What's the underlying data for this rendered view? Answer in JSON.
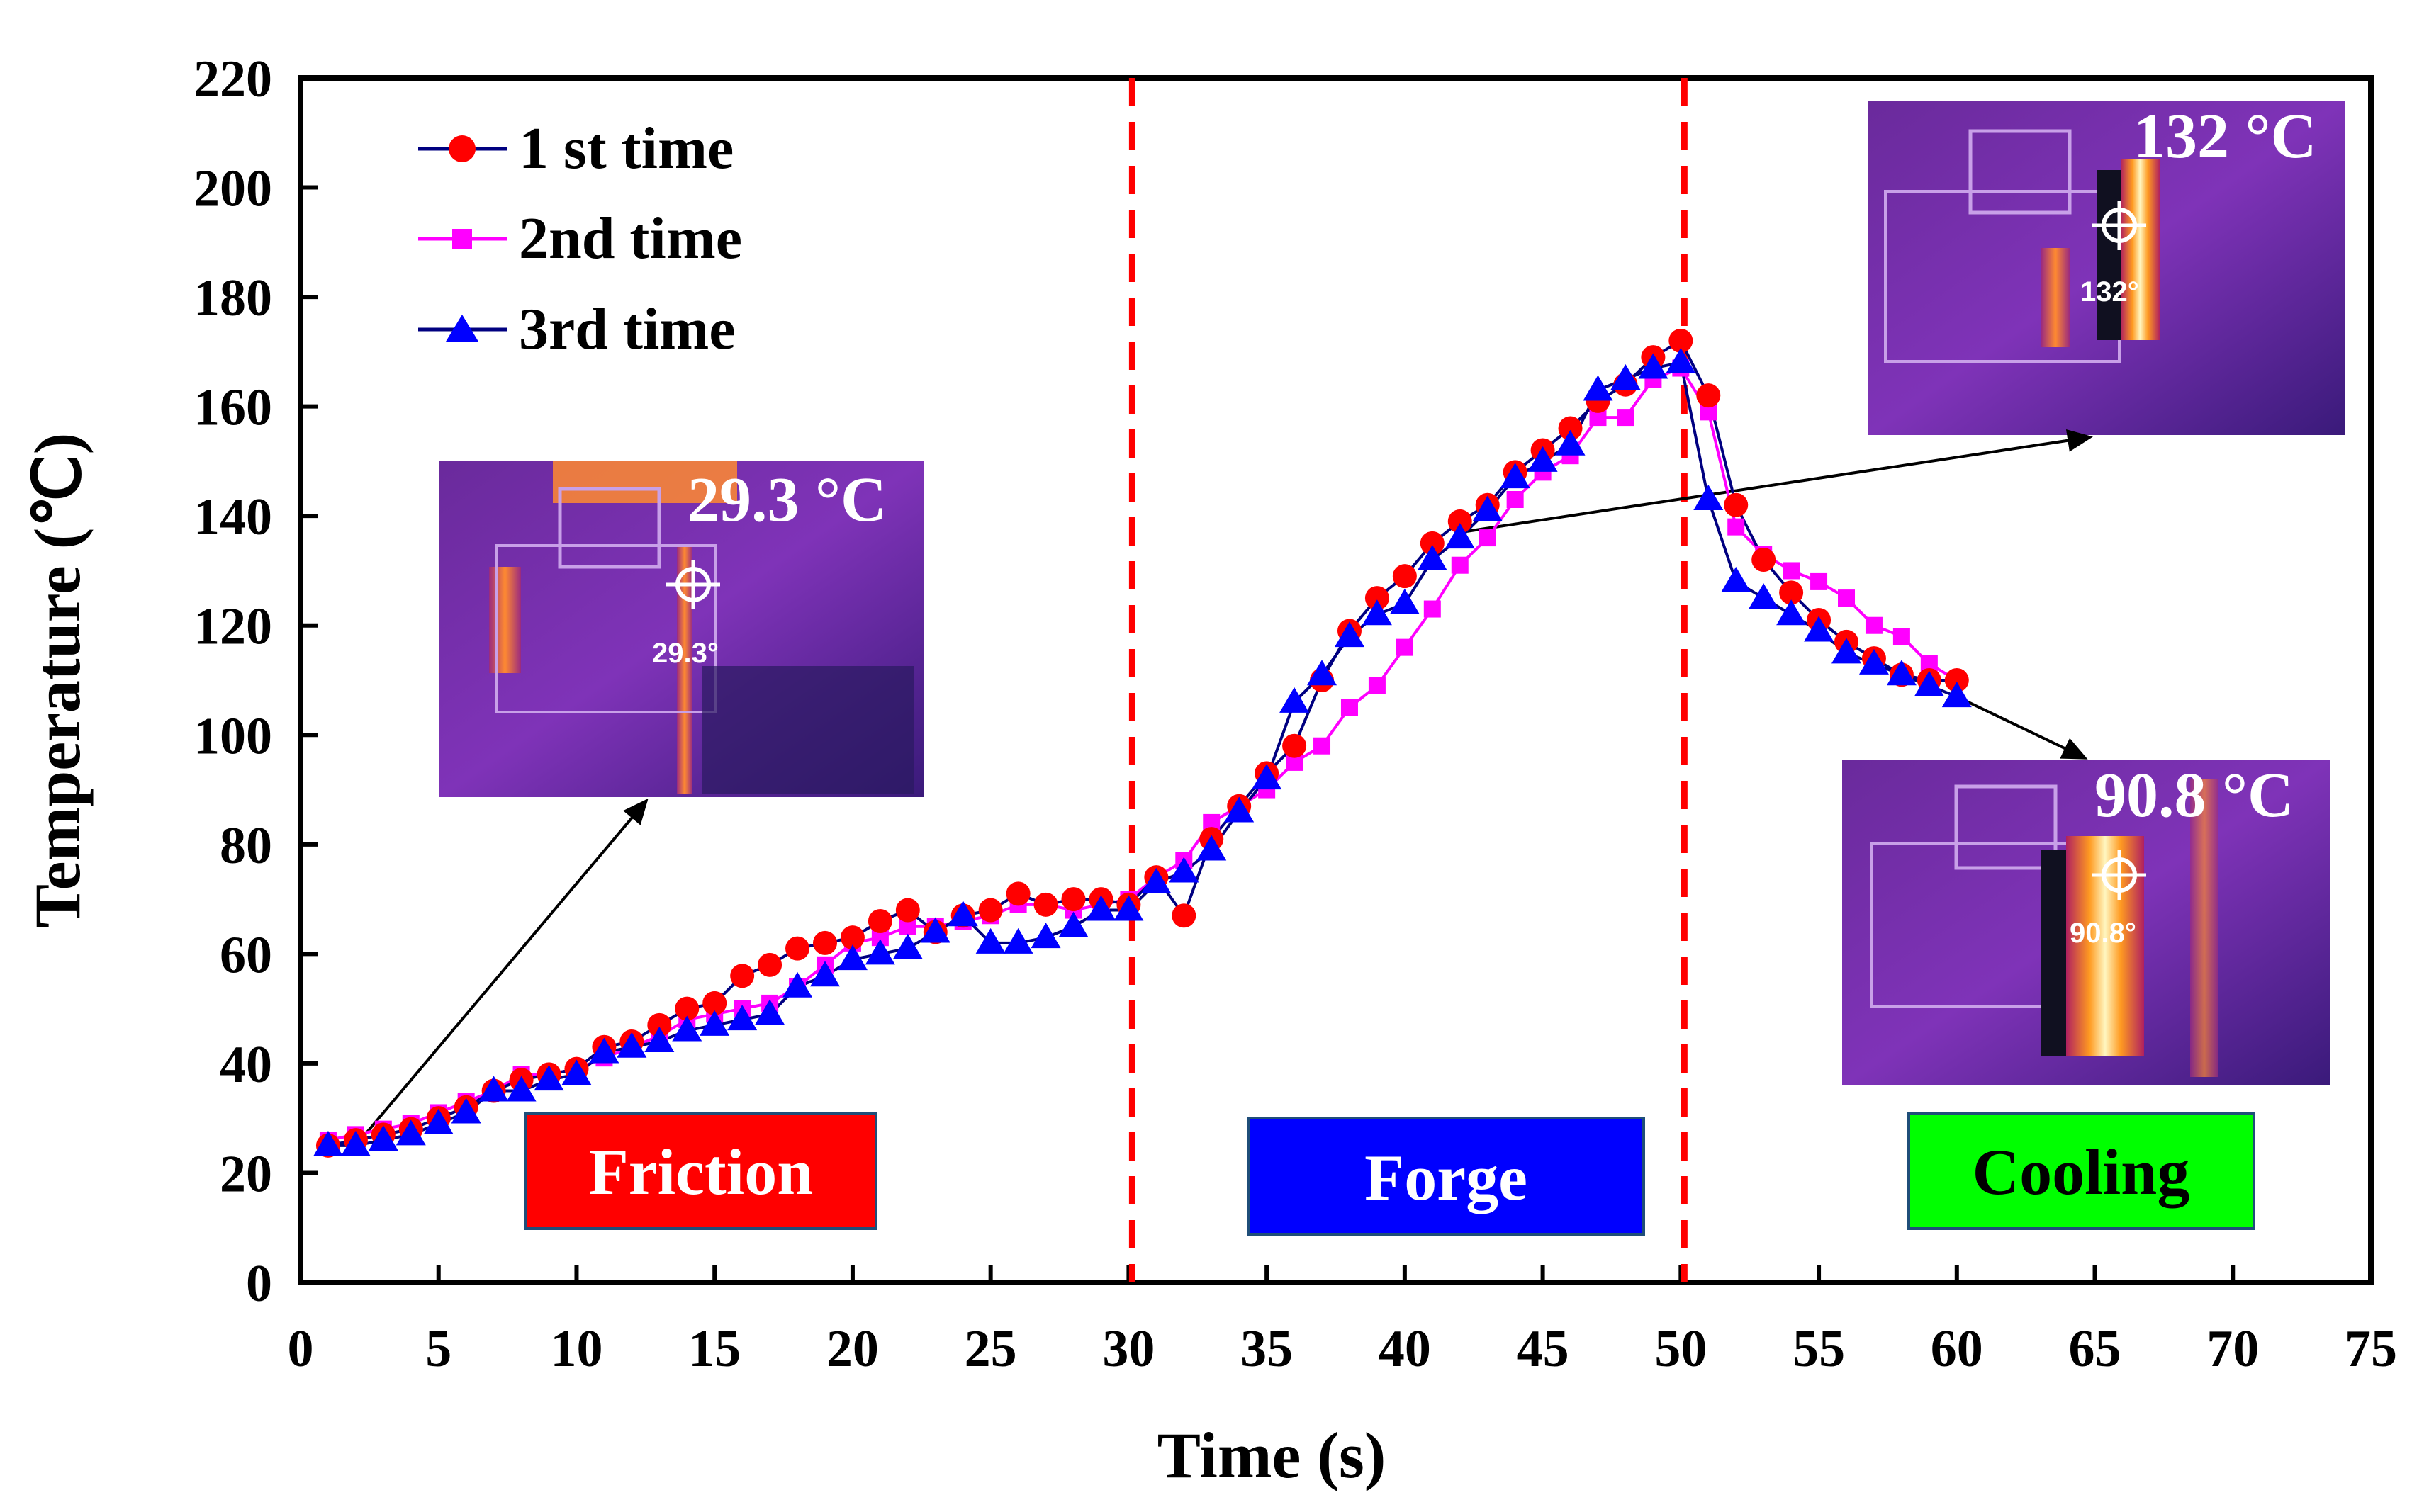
{
  "chart_data": {
    "type": "line",
    "xlabel": "Time (s)",
    "ylabel": "Temperature (℃)",
    "xlim": [
      0,
      75
    ],
    "ylim": [
      0,
      220
    ],
    "xticks": [
      "0",
      "5",
      "10",
      "15",
      "20",
      "25",
      "30",
      "35",
      "40",
      "45",
      "50",
      "55",
      "60",
      "65",
      "70",
      "75"
    ],
    "yticks": [
      "0",
      "20",
      "40",
      "60",
      "80",
      "100",
      "120",
      "140",
      "160",
      "180",
      "200",
      "220"
    ],
    "x": [
      1,
      2,
      3,
      4,
      5,
      6,
      7,
      8,
      9,
      10,
      11,
      12,
      13,
      14,
      15,
      16,
      17,
      18,
      19,
      20,
      21,
      22,
      23,
      24,
      25,
      26,
      27,
      28,
      29,
      30,
      31,
      32,
      33,
      34,
      35,
      36,
      37,
      38,
      39,
      40,
      41,
      42,
      43,
      44,
      45,
      46,
      47,
      48,
      49,
      50,
      51,
      52,
      53,
      54,
      55,
      56,
      57,
      58,
      59,
      60
    ],
    "series": [
      {
        "name": "1 st time",
        "color": "#ff0000",
        "line_color": "#000080",
        "marker": "circle",
        "values": [
          25,
          26,
          27,
          28,
          30,
          32,
          35,
          37,
          38,
          39,
          43,
          44,
          47,
          50,
          51,
          56,
          58,
          61,
          62,
          63,
          66,
          68,
          64,
          67,
          68,
          71,
          69,
          70,
          70,
          69,
          74,
          67,
          81,
          87,
          93,
          98,
          110,
          119,
          125,
          129,
          135,
          139,
          142,
          148,
          152,
          156,
          161,
          164,
          169,
          172,
          162,
          142,
          132,
          126,
          121,
          117,
          114,
          111,
          110,
          110
        ]
      },
      {
        "name": "2nd time",
        "color": "#ff00ff",
        "line_color": "#ff00ff",
        "marker": "square",
        "values": [
          26,
          27,
          28,
          29,
          31,
          33,
          35,
          38,
          38,
          39,
          41,
          43,
          45,
          48,
          49,
          50,
          51,
          54,
          58,
          62,
          63,
          65,
          65,
          66,
          67,
          69,
          69,
          68,
          69,
          70,
          74,
          77,
          84,
          87,
          90,
          95,
          98,
          105,
          109,
          116,
          123,
          131,
          136,
          143,
          148,
          151,
          158,
          158,
          165,
          167,
          159,
          138,
          133,
          130,
          128,
          125,
          120,
          118,
          113,
          110
        ]
      },
      {
        "name": "3rd time",
        "color": "#0000ff",
        "line_color": "#000080",
        "marker": "triangle",
        "values": [
          25,
          25,
          26,
          27,
          29,
          31,
          35,
          35,
          37,
          38,
          42,
          43,
          44,
          46,
          47,
          48,
          49,
          54,
          56,
          59,
          60,
          61,
          64,
          67,
          62,
          62,
          63,
          65,
          68,
          68,
          73,
          75,
          79,
          86,
          92,
          106,
          111,
          118,
          122,
          124,
          132,
          136,
          141,
          147,
          150,
          153,
          163,
          165,
          167,
          168,
          143,
          128,
          125,
          122,
          119,
          115,
          113,
          111,
          109,
          107
        ]
      }
    ],
    "phase_dividers": [
      30,
      50
    ],
    "phases": [
      {
        "label": "Friction",
        "bg": "#ff0000",
        "fg": "#ffffff"
      },
      {
        "label": "Forge",
        "bg": "#0000ff",
        "fg": "#ffffff"
      },
      {
        "label": "Cooling",
        "bg": "#00ff00",
        "fg": "#000000"
      }
    ],
    "insets": [
      {
        "temp_label": "29.3 °C",
        "reticle_label": "29.3°",
        "arrow_from_x": 2,
        "arrow_from_y": 25
      },
      {
        "temp_label": "132 °C",
        "reticle_label": "132°",
        "arrow_from_x": 42,
        "arrow_from_y": 137
      },
      {
        "temp_label": "90.8 °C",
        "reticle_label": "90.8°",
        "arrow_from_x": 60,
        "arrow_from_y": 107
      }
    ]
  }
}
